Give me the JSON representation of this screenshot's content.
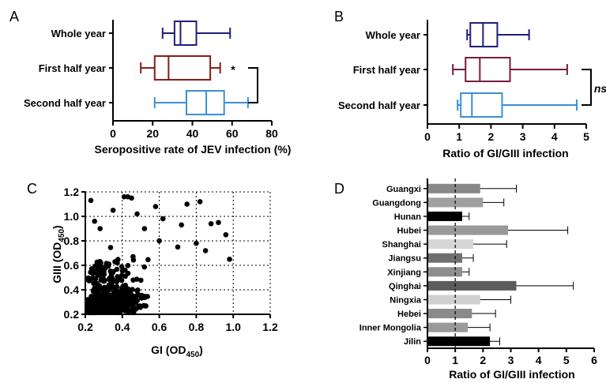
{
  "panels": {
    "A": {
      "letter": "A",
      "xlabel": "Seropositive rate of JEV infection (%)",
      "annotation": "*",
      "ticks": [
        "0",
        "20",
        "40",
        "60",
        "80"
      ]
    },
    "B": {
      "letter": "B",
      "xlabel": "Ratio of GI/GIII infection",
      "annotation": "ns",
      "ticks": [
        "0",
        "1",
        "2",
        "3",
        "4",
        "5"
      ]
    },
    "C": {
      "letter": "C",
      "xlabel_main": "GI (OD",
      "xlabel_sub": "450",
      "xlabel_close": ")",
      "ylabel_main": "GIII (OD",
      "ylabel_sub": "450",
      "ylabel_close": ")",
      "xticks": [
        "0.2",
        "0.4",
        "0.6",
        "0.8",
        "1.0",
        "1.2"
      ],
      "yticks": [
        "0.2",
        "0.4",
        "0.6",
        "0.8",
        "1.0",
        "1.2"
      ]
    },
    "D": {
      "letter": "D",
      "xlabel": "Ratio of GI/GIII infection",
      "ticks": [
        "0",
        "1",
        "2",
        "3",
        "4",
        "5",
        "6"
      ]
    }
  },
  "chart_data": [
    {
      "panel": "A",
      "type": "box",
      "xlim": [
        0,
        80
      ],
      "xlabel": "Seropositive rate of JEV infection (%)",
      "categories": [
        "Whole year",
        "First half year",
        "Second half year"
      ],
      "boxes": [
        {
          "name": "Whole year",
          "min": 25,
          "q1": 31,
          "median": 34,
          "q3": 42,
          "max": 59,
          "color": "#1f1f7a"
        },
        {
          "name": "First half year",
          "min": 14,
          "q1": 21,
          "median": 28,
          "q3": 49,
          "max": 54,
          "color": "#8b1a1a"
        },
        {
          "name": "Second half year",
          "min": 21,
          "q1": 37,
          "median": 47,
          "q3": 56,
          "max": 68,
          "color": "#3a8fd9"
        }
      ],
      "significance": {
        "label": "*",
        "between": [
          "First half year",
          "Second half year"
        ]
      }
    },
    {
      "panel": "B",
      "type": "box",
      "xlim": [
        0,
        5
      ],
      "xlabel": "Ratio of GI/GIII infection",
      "categories": [
        "Whole year",
        "First half year",
        "Second half year"
      ],
      "boxes": [
        {
          "name": "Whole year",
          "min": 1.25,
          "q1": 1.35,
          "median": 1.75,
          "q3": 2.2,
          "max": 3.2,
          "color": "#1f1f7a"
        },
        {
          "name": "First half year",
          "min": 0.8,
          "q1": 1.2,
          "median": 1.65,
          "q3": 2.6,
          "max": 4.4,
          "color": "#7a1a3f"
        },
        {
          "name": "Second half year",
          "min": 0.95,
          "q1": 1.05,
          "median": 1.4,
          "q3": 2.35,
          "max": 4.7,
          "color": "#3a8fd9"
        }
      ],
      "significance": {
        "label": "ns",
        "between": [
          "First half year",
          "Second half year"
        ]
      }
    },
    {
      "panel": "C",
      "type": "scatter",
      "xlim": [
        0.2,
        1.2
      ],
      "ylim": [
        0.2,
        1.2
      ],
      "xlabel": "GI (OD450)",
      "ylabel": "GIII (OD450)",
      "grid": true
    },
    {
      "panel": "D",
      "type": "bar",
      "orientation": "horizontal",
      "xlim": [
        0,
        6
      ],
      "xlabel": "Ratio of GI/GIII infection",
      "reference_line": 1,
      "categories": [
        "Guangxi",
        "Guangdong",
        "Hunan",
        "Hubei",
        "Shanghai",
        "Jiangsu",
        "Xinjiang",
        "Qinghai",
        "Ningxia",
        "Hebei",
        "Inner Mongolia",
        "Jilin"
      ],
      "values": [
        1.9,
        2.0,
        1.25,
        2.9,
        1.65,
        1.25,
        1.25,
        3.2,
        1.9,
        1.6,
        1.45,
        2.25
      ],
      "errors": [
        1.3,
        0.75,
        0.25,
        2.15,
        1.2,
        0.4,
        0.25,
        2.05,
        1.1,
        0.85,
        0.8,
        0.35
      ],
      "colors": [
        "#888888",
        "#a0a0a0",
        "#000000",
        "#999999",
        "#d6d6d6",
        "#6f6f6f",
        "#8e8e8e",
        "#5c5c5c",
        "#d0d0d0",
        "#8a8a8a",
        "#9a9a9a",
        "#000000"
      ]
    }
  ]
}
